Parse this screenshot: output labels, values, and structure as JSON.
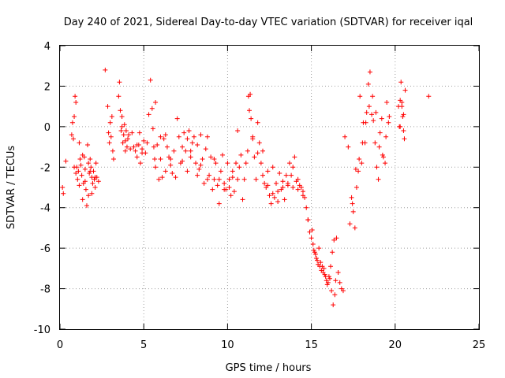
{
  "chart_data": {
    "type": "scatter",
    "title": "Day 240 of 2021, Sidereal Day-to-day VTEC variation (SDTVAR) for receiver iqal",
    "xlabel": "GPS time / hours",
    "ylabel": "SDTVAR / TECUs",
    "xlim": [
      0,
      25
    ],
    "ylim": [
      -10,
      4
    ],
    "xticks": [
      0,
      5,
      10,
      15,
      20,
      25
    ],
    "yticks": [
      -10,
      -8,
      -6,
      -4,
      -2,
      0,
      2,
      4
    ],
    "grid": true,
    "marker": "+",
    "color": "#ff0000",
    "series": [
      {
        "name": "SDTVAR",
        "x": [
          0.15,
          0.2,
          0.35,
          0.7,
          0.75,
          0.8,
          0.85,
          0.9,
          0.95,
          1.0,
          1.05,
          1.1,
          1.15,
          1.2,
          1.25,
          1.3,
          1.35,
          1.4,
          1.45,
          1.5,
          1.55,
          1.6,
          1.65,
          1.7,
          1.75,
          1.8,
          1.85,
          1.9,
          1.95,
          2.0,
          2.05,
          2.1,
          2.15,
          2.2,
          2.3,
          2.7,
          2.85,
          2.9,
          2.95,
          3.0,
          3.05,
          3.1,
          3.15,
          3.2,
          3.5,
          3.55,
          3.6,
          3.65,
          3.7,
          3.75,
          3.8,
          3.85,
          3.9,
          3.95,
          4.0,
          4.05,
          4.1,
          4.2,
          4.4,
          4.5,
          4.6,
          4.7,
          4.75,
          4.8,
          4.9,
          5.0,
          5.1,
          5.3,
          5.4,
          5.5,
          5.55,
          5.6,
          5.65,
          5.7,
          5.8,
          5.9,
          6.0,
          6.1,
          6.2,
          6.3,
          6.4,
          6.5,
          6.6,
          6.7,
          6.8,
          6.9,
          7.0,
          7.1,
          7.2,
          7.3,
          7.4,
          7.5,
          7.6,
          7.7,
          7.8,
          7.9,
          8.0,
          8.1,
          8.2,
          8.3,
          8.4,
          8.5,
          8.6,
          8.7,
          8.8,
          8.9,
          9.0,
          9.1,
          9.2,
          9.3,
          9.4,
          9.5,
          9.6,
          9.7,
          9.8,
          9.9,
          10.0,
          10.1,
          10.2,
          10.3,
          10.4,
          10.5,
          10.6,
          10.7,
          10.8,
          10.9,
          11.0,
          11.1,
          11.2,
          11.25,
          11.3,
          11.35,
          11.4,
          11.5,
          11.6,
          11.7,
          11.8,
          11.9,
          12.0,
          12.1,
          12.2,
          12.3,
          12.4,
          12.5,
          12.6,
          12.7,
          12.8,
          12.9,
          13.0,
          13.1,
          13.2,
          13.3,
          13.4,
          13.5,
          13.6,
          13.7,
          13.8,
          13.9,
          14.0,
          14.1,
          14.2,
          14.3,
          14.4,
          14.5,
          14.6,
          14.7,
          14.8,
          14.9,
          15.0,
          15.1,
          15.2,
          15.3,
          15.4,
          15.5,
          15.6,
          15.7,
          15.8,
          15.9,
          16.0,
          16.1,
          16.2,
          16.3,
          16.4,
          16.5,
          16.6,
          16.7,
          16.8,
          16.9,
          17.0,
          17.2,
          17.4,
          17.5,
          17.6,
          17.7,
          17.8,
          17.9,
          18.0,
          18.1,
          18.2,
          18.3,
          18.4,
          18.5,
          18.6,
          18.7,
          18.8,
          18.9,
          19.0,
          19.1,
          19.2,
          19.3,
          19.4,
          19.5,
          19.6,
          20.2,
          20.25,
          20.3,
          20.35,
          20.4,
          20.45,
          20.5,
          20.55,
          20.6,
          22.0,
          0.85,
          0.95,
          1.15,
          1.35,
          1.5,
          1.7,
          1.8,
          1.9,
          2.1,
          3.7,
          3.9,
          4.3,
          4.6,
          4.9,
          5.2,
          5.7,
          6.0,
          6.3,
          6.6,
          7.3,
          7.6,
          7.8,
          8.2,
          8.4,
          8.8,
          9.2,
          9.5,
          9.8,
          10.1,
          10.3,
          10.6,
          11.5,
          11.8,
          12.1,
          12.4,
          12.7,
          13.0,
          13.3,
          13.6,
          13.9,
          14.2,
          14.5,
          14.8,
          15.05,
          15.15,
          15.25,
          15.35,
          15.45,
          15.55,
          15.65,
          15.75,
          15.85,
          15.95,
          16.05,
          16.15,
          16.25,
          16.35,
          16.45,
          17.3,
          17.45,
          17.65,
          17.85,
          18.05,
          18.25,
          18.45,
          18.65,
          18.85,
          19.05,
          19.25,
          19.45,
          19.65,
          20.3,
          20.4,
          20.5
        ],
        "y": [
          -3.0,
          -3.3,
          -1.7,
          -0.4,
          0.2,
          -0.6,
          0.5,
          1.5,
          1.2,
          -2.0,
          -2.6,
          -2.2,
          -0.8,
          -1.6,
          -1.9,
          -2.4,
          -3.6,
          -2.8,
          -1.5,
          -2.1,
          -3.1,
          -3.9,
          -0.9,
          -1.8,
          -2.3,
          -1.6,
          -2.0,
          -2.5,
          -2.8,
          -2.2,
          -2.6,
          -3.0,
          -1.8,
          -2.5,
          -2.7,
          2.8,
          1.0,
          -0.3,
          -0.8,
          0.2,
          -0.5,
          0.5,
          -1.2,
          -1.6,
          1.5,
          2.2,
          0.8,
          -0.2,
          0.5,
          -0.8,
          -0.4,
          0.1,
          -1.2,
          -0.2,
          -1.0,
          -0.6,
          -0.4,
          -1.1,
          -1.0,
          -1.2,
          -1.5,
          -0.9,
          -0.3,
          -1.8,
          -1.1,
          -0.7,
          -1.3,
          0.6,
          2.3,
          0.9,
          -0.1,
          -1.0,
          -1.6,
          -2.0,
          -0.9,
          -2.6,
          -1.6,
          -2.5,
          -0.6,
          -0.4,
          -1.0,
          -1.5,
          -1.9,
          -2.3,
          -1.2,
          -2.5,
          0.4,
          -0.5,
          -1.8,
          -1.0,
          -0.3,
          -1.2,
          -0.6,
          -0.2,
          -1.5,
          -0.8,
          -0.5,
          -1.8,
          -0.9,
          -2.1,
          -0.4,
          -1.6,
          -2.8,
          -1.1,
          -0.5,
          -2.4,
          -1.5,
          -3.1,
          -2.6,
          -1.8,
          -2.9,
          -3.8,
          -2.2,
          -1.4,
          -2.8,
          -3.1,
          -1.8,
          -2.6,
          -3.4,
          -2.5,
          -3.2,
          -1.8,
          -0.2,
          -2.0,
          -1.4,
          -3.6,
          -2.6,
          -1.8,
          -1.2,
          1.5,
          0.8,
          1.6,
          0.4,
          -0.5,
          -1.5,
          -2.6,
          0.2,
          -0.8,
          -1.8,
          -1.2,
          -2.8,
          -3.0,
          -2.2,
          -3.4,
          -3.8,
          -2.0,
          -3.5,
          -2.8,
          -3.7,
          -2.3,
          -3.1,
          -2.7,
          -3.6,
          -2.4,
          -2.9,
          -1.8,
          -2.4,
          -2.0,
          -1.5,
          -2.7,
          -2.6,
          -2.9,
          -3.0,
          -3.2,
          -3.5,
          -4.0,
          -4.6,
          -5.2,
          -5.5,
          -5.8,
          -6.2,
          -6.5,
          -6.8,
          -6.9,
          -7.1,
          -7.2,
          -7.3,
          -7.6,
          -7.7,
          -7.5,
          -8.1,
          -8.8,
          -8.3,
          -5.5,
          -7.2,
          -7.7,
          -8.0,
          -8.1,
          -0.5,
          -1.0,
          -3.5,
          -4.2,
          -5.0,
          -3.0,
          -2.2,
          1.5,
          -1.8,
          0.2,
          -0.8,
          0.7,
          2.1,
          2.7,
          0.6,
          0.3,
          -0.8,
          -2.0,
          -2.6,
          -0.3,
          0.4,
          -1.5,
          -1.8,
          1.2,
          0.2,
          1.0,
          0.0,
          1.3,
          2.2,
          1.0,
          0.5,
          -0.2,
          -0.6,
          1.8,
          1.5,
          -2.0,
          -2.3,
          -2.9,
          -1.4,
          -2.7,
          -3.4,
          -2.2,
          -3.3,
          -2.5,
          0.0,
          -0.7,
          -0.3,
          -0.9,
          -1.3,
          -0.8,
          1.2,
          -0.5,
          -2.2,
          -1.6,
          -1.7,
          -2.2,
          -1.2,
          -2.4,
          -1.9,
          -2.6,
          -1.6,
          -2.6,
          -3.1,
          -3.0,
          -2.2,
          -2.6,
          -0.6,
          -1.3,
          -2.4,
          -2.9,
          -3.3,
          -3.2,
          -3.0,
          -2.8,
          -3.0,
          -3.1,
          -3.4,
          -4.6,
          -5.1,
          -6.1,
          -6.3,
          -6.6,
          -6.0,
          -6.7,
          -6.9,
          -7.0,
          -7.4,
          -7.8,
          -7.4,
          -6.9,
          -6.2,
          -5.6,
          -7.6,
          -4.8,
          -3.8,
          -2.1,
          -1.6,
          -0.8,
          0.2,
          1.0,
          1.5,
          0.7,
          -1.0,
          -1.4,
          -0.5,
          0.5,
          0.0,
          1.2,
          0.6
        ]
      }
    ]
  }
}
